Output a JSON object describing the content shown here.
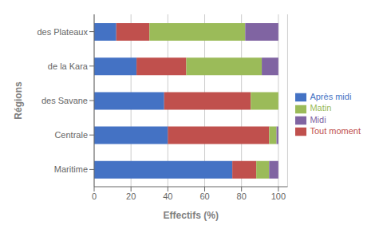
{
  "chart_data": {
    "type": "bar",
    "orientation": "horizontal",
    "stacked": true,
    "categories": [
      "Maritime",
      "Centrale",
      "des Savane",
      "de la Kara",
      "des Plateaux"
    ],
    "series": [
      {
        "name": "Après midi",
        "color": "#4472C4",
        "values": [
          75,
          40,
          38,
          23,
          12
        ]
      },
      {
        "name": "Tout moment",
        "color": "#C0504D",
        "values": [
          13,
          55,
          47,
          27,
          18
        ]
      },
      {
        "name": "Matin",
        "color": "#9BBB59",
        "values": [
          7,
          4,
          15,
          41,
          52
        ]
      },
      {
        "name": "Midi",
        "color": "#8064A2",
        "values": [
          5,
          1,
          0,
          9,
          18
        ]
      }
    ],
    "xlabel": "Effectifs (%)",
    "ylabel": "Régions",
    "xlim": [
      0,
      105
    ],
    "xticks": [
      0,
      20,
      40,
      60,
      80,
      100
    ],
    "grid": true,
    "legend": "right"
  }
}
